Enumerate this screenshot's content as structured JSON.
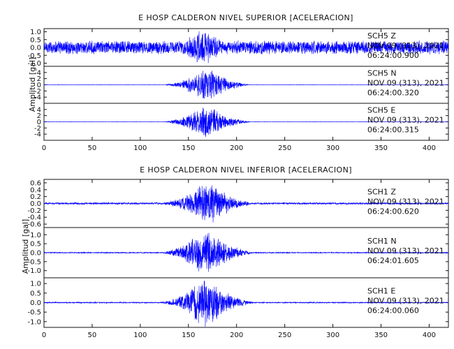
{
  "chart_data": [
    {
      "type": "line",
      "title": "E HOSP CALDERON NIVEL SUPERIOR [ACELERACION]",
      "xlabel": "",
      "ylabel": "Amplitud [gal]",
      "xlim": [
        0,
        420
      ],
      "x_ticks": [
        "0",
        "50",
        "100",
        "150",
        "200",
        "250",
        "300",
        "350",
        "400"
      ],
      "grid": false,
      "series": [
        {
          "name": "SCH5 Z",
          "station": "SCH5",
          "component": "Z",
          "date": "NOV 09 (313), 2021",
          "time": "06:24:00.900",
          "ylim": [
            -1.2,
            1.2
          ],
          "y_ticks": [
            "1.0",
            "0.5",
            "0.0",
            "-0.5",
            "-1.0"
          ],
          "baseline_amp": 0.45,
          "peak_amp": 1.0,
          "peak_time_s": 165,
          "strong_motion_s": [
            120,
            215
          ],
          "color": "#0000ff"
        },
        {
          "name": "SCH5 N",
          "station": "SCH5",
          "component": "N",
          "date": "NOV 09 (313), 2021",
          "time": "06:24:00.320",
          "ylim": [
            -6,
            6
          ],
          "y_ticks": [
            "4",
            "2",
            "0",
            "-2",
            "-4"
          ],
          "baseline_amp": 0.05,
          "peak_amp": 4.6,
          "peak_time_s": 170,
          "strong_motion_s": [
            125,
            215
          ],
          "color": "#0000ff"
        },
        {
          "name": "SCH5 E",
          "station": "SCH5",
          "component": "E",
          "date": "NOV 09 (313), 2021",
          "time": "06:24:00.315",
          "ylim": [
            -6,
            6
          ],
          "y_ticks": [
            "4",
            "2",
            "0",
            "-2",
            "-4"
          ],
          "baseline_amp": 0.05,
          "peak_amp": 4.8,
          "peak_time_s": 168,
          "strong_motion_s": [
            125,
            215
          ],
          "color": "#0000ff"
        }
      ]
    },
    {
      "type": "line",
      "title": "E HOSP CALDERON NIVEL INFERIOR [ACELERACION]",
      "xlabel": "",
      "ylabel": "Amplitud [gal]",
      "xlim": [
        0,
        420
      ],
      "x_ticks": [
        "0",
        "50",
        "100",
        "150",
        "200",
        "250",
        "300",
        "350",
        "400"
      ],
      "grid": false,
      "series": [
        {
          "name": "SCH1 Z",
          "station": "SCH1",
          "component": "Z",
          "date": "NOV 09 (313), 2021",
          "time": "06:24:00.620",
          "ylim": [
            -0.7,
            0.7
          ],
          "y_ticks": [
            "0.6",
            "0.4",
            "0.2",
            "0.0",
            "-0.2",
            "-0.4",
            "-0.6"
          ],
          "baseline_amp": 0.03,
          "peak_amp": 0.55,
          "peak_time_s": 170,
          "strong_motion_s": [
            120,
            220
          ],
          "color": "#0000ff"
        },
        {
          "name": "SCH1 N",
          "station": "SCH1",
          "component": "N",
          "date": "NOV 09 (313), 2021",
          "time": "06:24:01.605",
          "ylim": [
            -1.4,
            1.4
          ],
          "y_ticks": [
            "1.0",
            "0.5",
            "0.0",
            "-0.5",
            "-1.0"
          ],
          "baseline_amp": 0.03,
          "peak_amp": 1.1,
          "peak_time_s": 168,
          "strong_motion_s": [
            120,
            220
          ],
          "color": "#0000ff"
        },
        {
          "name": "SCH1 E",
          "station": "SCH1",
          "component": "E",
          "date": "NOV 09 (313), 2021",
          "time": "06:24:00.060",
          "ylim": [
            -1.3,
            1.3
          ],
          "y_ticks": [
            "1.0",
            "0.5",
            "0.0",
            "-0.5",
            "-1.0"
          ],
          "baseline_amp": 0.03,
          "peak_amp": 1.15,
          "peak_time_s": 167,
          "strong_motion_s": [
            120,
            220
          ],
          "color": "#0000ff"
        }
      ]
    }
  ]
}
